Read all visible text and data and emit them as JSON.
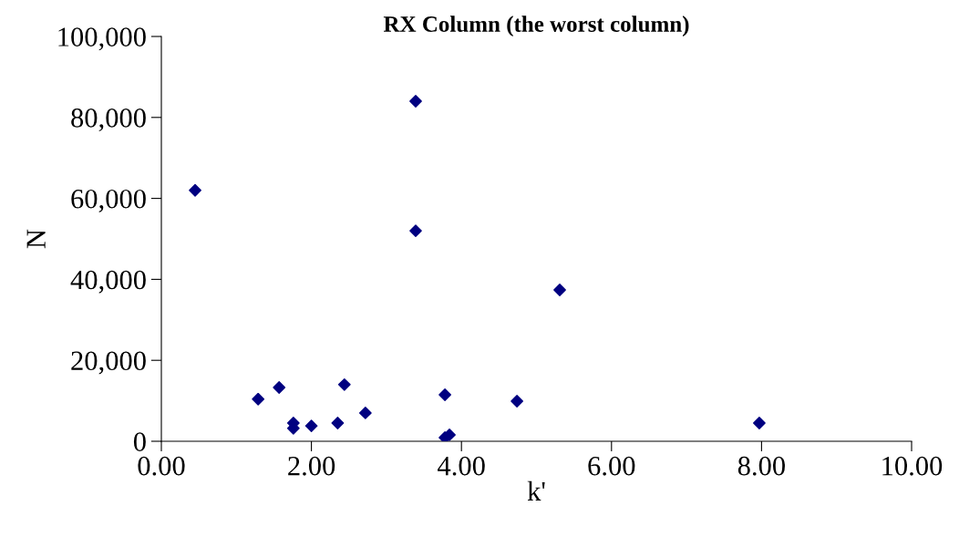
{
  "chart_data": {
    "type": "scatter",
    "title": "RX Column (the worst column)",
    "xlabel": "k'",
    "ylabel": "N",
    "x": [
      0.45,
      3.39,
      3.39,
      5.31,
      1.29,
      1.57,
      1.76,
      1.76,
      2.0,
      2.35,
      2.44,
      2.72,
      3.78,
      3.78,
      3.84,
      4.74,
      7.97
    ],
    "values": [
      62000,
      84000,
      52000,
      37400,
      10400,
      13300,
      4500,
      3200,
      3800,
      4500,
      14000,
      7000,
      11500,
      900,
      1600,
      9900,
      4500
    ],
    "color": "#000080",
    "marker": "diamond",
    "grid": false,
    "legend": false,
    "xlim": [
      0,
      10
    ],
    "xticks": [
      {
        "value": 0,
        "label": "0.00"
      },
      {
        "value": 2,
        "label": "2.00"
      },
      {
        "value": 4,
        "label": "4.00"
      },
      {
        "value": 6,
        "label": "6.00"
      },
      {
        "value": 8,
        "label": "8.00"
      },
      {
        "value": 10,
        "label": "10.00"
      }
    ],
    "ylim": [
      0,
      100000
    ],
    "yticks": [
      0,
      {
        "value": 20000,
        "label": "20,000"
      },
      {
        "value": 40000,
        "label": "40,000"
      },
      {
        "value": 60000,
        "label": "60,000"
      },
      {
        "value": 80000,
        "label": "80,000"
      },
      {
        "value": 100000,
        "label": "100,000"
      }
    ]
  }
}
